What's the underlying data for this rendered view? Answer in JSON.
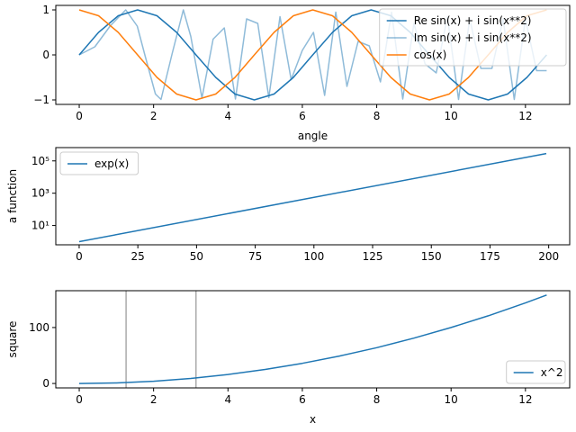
{
  "chart_data": [
    {
      "type": "line",
      "xlabel": "angle",
      "ylabel": "",
      "xlim": [
        -0.63,
        13.19
      ],
      "ylim": [
        -1.1,
        1.1
      ],
      "xticks": [
        0,
        2,
        4,
        6,
        8,
        10,
        12
      ],
      "xtick_labels": [
        "0",
        "2",
        "4",
        "6",
        "8",
        "10",
        "12"
      ],
      "yticks": [
        -1,
        0,
        1
      ],
      "ytick_labels": [
        "−1",
        "0",
        "1"
      ],
      "legend_position": "top-right",
      "series": [
        {
          "name": "Re sin(x) + i sin(x**2)",
          "color": "#1f77b4",
          "opacity": 1,
          "x": [
            0,
            0.52,
            1.05,
            1.57,
            2.09,
            2.62,
            3.14,
            3.67,
            4.19,
            4.71,
            5.24,
            5.76,
            6.28,
            6.81,
            7.33,
            7.85,
            8.38,
            8.9,
            9.42,
            9.95,
            10.47,
            11.0,
            11.52,
            12.04,
            12.57
          ],
          "y": [
            0,
            0.5,
            0.87,
            1,
            0.87,
            0.5,
            0,
            -0.5,
            -0.87,
            -1,
            -0.87,
            -0.5,
            0,
            0.5,
            0.87,
            1,
            0.87,
            0.5,
            0,
            -0.5,
            -0.87,
            -1,
            -0.87,
            -0.5,
            0
          ]
        },
        {
          "name": "Im sin(x) + i sin(x**2)",
          "color": "#1f77b4",
          "opacity": 0.5,
          "x": [
            0,
            0.42,
            0.84,
            1.25,
            1.56,
            1.77,
            2.05,
            2.2,
            2.5,
            2.8,
            3.0,
            3.3,
            3.6,
            3.9,
            4.2,
            4.5,
            4.8,
            5.1,
            5.4,
            5.7,
            6.0,
            6.3,
            6.6,
            6.9,
            7.2,
            7.5,
            7.8,
            8.1,
            8.4,
            8.7,
            9.0,
            9.3,
            9.6,
            9.9,
            10.2,
            10.5,
            10.8,
            11.1,
            11.4,
            11.7,
            12.0,
            12.3,
            12.57
          ],
          "y": [
            0,
            0.18,
            0.65,
            1.0,
            0.64,
            -0.02,
            -0.87,
            -0.99,
            0.03,
            1.0,
            0.41,
            -0.96,
            0.35,
            0.6,
            -0.98,
            0.8,
            0.7,
            -0.95,
            0.85,
            -0.55,
            0.1,
            0.5,
            -0.9,
            0.95,
            -0.7,
            0.3,
            0.2,
            -0.6,
            0.95,
            -0.98,
            0.7,
            -0.2,
            -0.4,
            0.85,
            -0.99,
            0.8,
            -0.3,
            -0.3,
            0.8,
            -0.99,
            0.8,
            -0.35,
            -0.35
          ]
        },
        {
          "name": "cos(x)",
          "color": "#ff7f0e",
          "opacity": 1,
          "x": [
            0,
            0.52,
            1.05,
            1.57,
            2.09,
            2.62,
            3.14,
            3.67,
            4.19,
            4.71,
            5.24,
            5.76,
            6.28,
            6.81,
            7.33,
            7.85,
            8.38,
            8.9,
            9.42,
            9.95,
            10.47,
            11.0,
            11.52,
            12.04,
            12.57
          ],
          "y": [
            1,
            0.87,
            0.5,
            0,
            -0.5,
            -0.87,
            -1,
            -0.87,
            -0.5,
            0,
            0.5,
            0.87,
            1,
            0.87,
            0.5,
            0,
            -0.5,
            -0.87,
            -1,
            -0.87,
            -0.5,
            0,
            0.5,
            0.87,
            1
          ]
        }
      ]
    },
    {
      "type": "line",
      "xlabel": "",
      "ylabel": "a function",
      "yscale": "log",
      "xlim": [
        -9.95,
        208.95
      ],
      "ylim": [
        0.64,
        665000
      ],
      "xticks": [
        0,
        25,
        50,
        75,
        100,
        125,
        150,
        175,
        200
      ],
      "xtick_labels": [
        "0",
        "25",
        "50",
        "75",
        "100",
        "125",
        "150",
        "175",
        "200"
      ],
      "yticks": [
        10,
        1000,
        100000
      ],
      "ytick_labels": [
        "10¹",
        "10³",
        "10⁵"
      ],
      "legend_position": "top-left",
      "series": [
        {
          "name": "exp(x)",
          "color": "#1f77b4",
          "opacity": 1,
          "x": [
            0,
            199
          ],
          "y": [
            1,
            286751
          ]
        }
      ]
    },
    {
      "type": "line",
      "xlabel": "x",
      "ylabel": "square",
      "xlim": [
        -0.63,
        13.19
      ],
      "ylim": [
        -7.9,
        165.8
      ],
      "xticks": [
        0,
        2,
        4,
        6,
        8,
        10,
        12
      ],
      "xtick_labels": [
        "0",
        "2",
        "4",
        "6",
        "8",
        "10",
        "12"
      ],
      "yticks": [
        0,
        100
      ],
      "ytick_labels": [
        "0",
        "100"
      ],
      "vlines": [
        1.26,
        3.14
      ],
      "vline_color": "#aaaaaa",
      "legend_position": "bottom-right",
      "series": [
        {
          "name": "x^2",
          "color": "#1f77b4",
          "opacity": 1,
          "x": [
            0,
            1,
            2,
            3,
            4,
            5,
            6,
            7,
            8,
            9,
            10,
            11,
            12,
            12.57
          ],
          "y": [
            0,
            1,
            4,
            9,
            16,
            25,
            36,
            49,
            64,
            81,
            100,
            121,
            144,
            158
          ]
        }
      ]
    }
  ]
}
